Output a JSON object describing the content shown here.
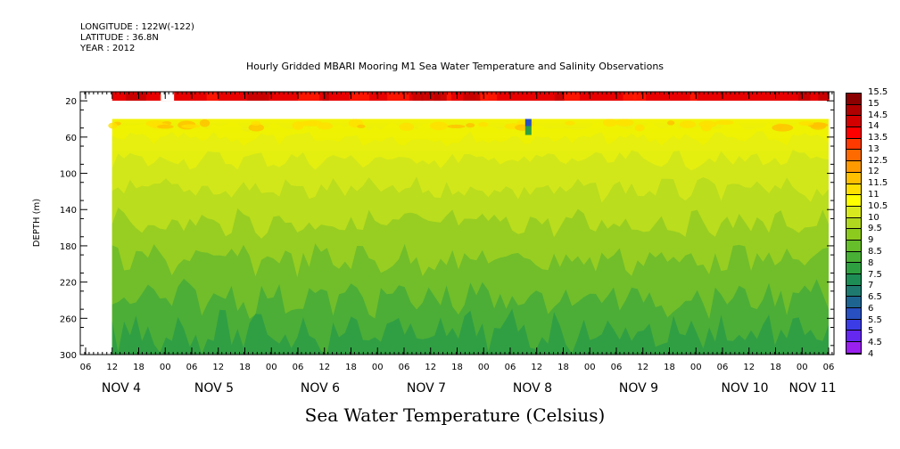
{
  "header": {
    "longitude": "LONGITUDE : 122W(-122)",
    "latitude": "LATITUDE : 36.8N",
    "year": "YEAR : 2012"
  },
  "chart_data": {
    "type": "heatmap",
    "title": "Hourly Gridded MBARI Mooring M1 Sea Water Temperature and Salinity Observations",
    "xlabel": "Sea Water Temperature (Celsius)",
    "ylabel": "DEPTH (m)",
    "yticks": [
      20,
      60,
      100,
      140,
      180,
      220,
      260,
      300
    ],
    "ylim": [
      300,
      10
    ],
    "x_hour_ticks": [
      "06",
      "12",
      "18",
      "00",
      "06",
      "12",
      "18",
      "00",
      "06",
      "12",
      "18",
      "00",
      "06",
      "12",
      "18",
      "00",
      "06",
      "12",
      "18",
      "00",
      "06",
      "12",
      "18",
      "00",
      "06",
      "12",
      "18",
      "00",
      "06"
    ],
    "x_days": [
      "NOV 4",
      "NOV 5",
      "NOV 6",
      "NOV 7",
      "NOV 8",
      "NOV 9",
      "NOV 10",
      "NOV 11"
    ],
    "data_start": "NOV 4 12:00",
    "data_end": "NOV 11 06:00",
    "gaps": [
      {
        "from": "NOV 4 23:00",
        "to": "NOV 5 02:00",
        "depth": [
          10,
          20
        ]
      },
      {
        "from": "NOV 4 12:00",
        "to": "NOV 11 06:00",
        "depth": [
          20,
          40
        ]
      }
    ],
    "anomaly": {
      "time": "NOV 8 10:00",
      "depth": [
        40,
        50
      ],
      "value": 6
    },
    "profile": [
      {
        "depth": 10,
        "value": 14.5
      },
      {
        "depth": 40,
        "value": 11.5
      },
      {
        "depth": 60,
        "value": 11
      },
      {
        "depth": 80,
        "value": 10.5
      },
      {
        "depth": 120,
        "value": 10
      },
      {
        "depth": 160,
        "value": 9.5
      },
      {
        "depth": 200,
        "value": 9
      },
      {
        "depth": 250,
        "value": 8.5
      },
      {
        "depth": 300,
        "value": 8
      }
    ],
    "colorbar": {
      "min": 4,
      "max": 15.5,
      "labels": [
        "15.5",
        "15",
        "14.5",
        "14",
        "13.5",
        "13",
        "12.5",
        "12",
        "11.5",
        "11",
        "10.5",
        "10",
        "9.5",
        "9",
        "8.5",
        "8",
        "7.5",
        "7",
        "6.5",
        "6",
        "5.5",
        "5",
        "4.5",
        "4"
      ],
      "colors": [
        "#8b0000",
        "#b00000",
        "#d40000",
        "#ff0000",
        "#ff3a00",
        "#ff6a00",
        "#ff9a00",
        "#ffc000",
        "#ffe000",
        "#ffff00",
        "#d8ea1e",
        "#b0d81e",
        "#8ccb1e",
        "#66be2a",
        "#48b035",
        "#2fa040",
        "#1e8c55",
        "#1e7a6e",
        "#1e6490",
        "#2850c0",
        "#3c3ce6",
        "#6428f0",
        "#9a20f0",
        "#e400ff"
      ]
    }
  }
}
